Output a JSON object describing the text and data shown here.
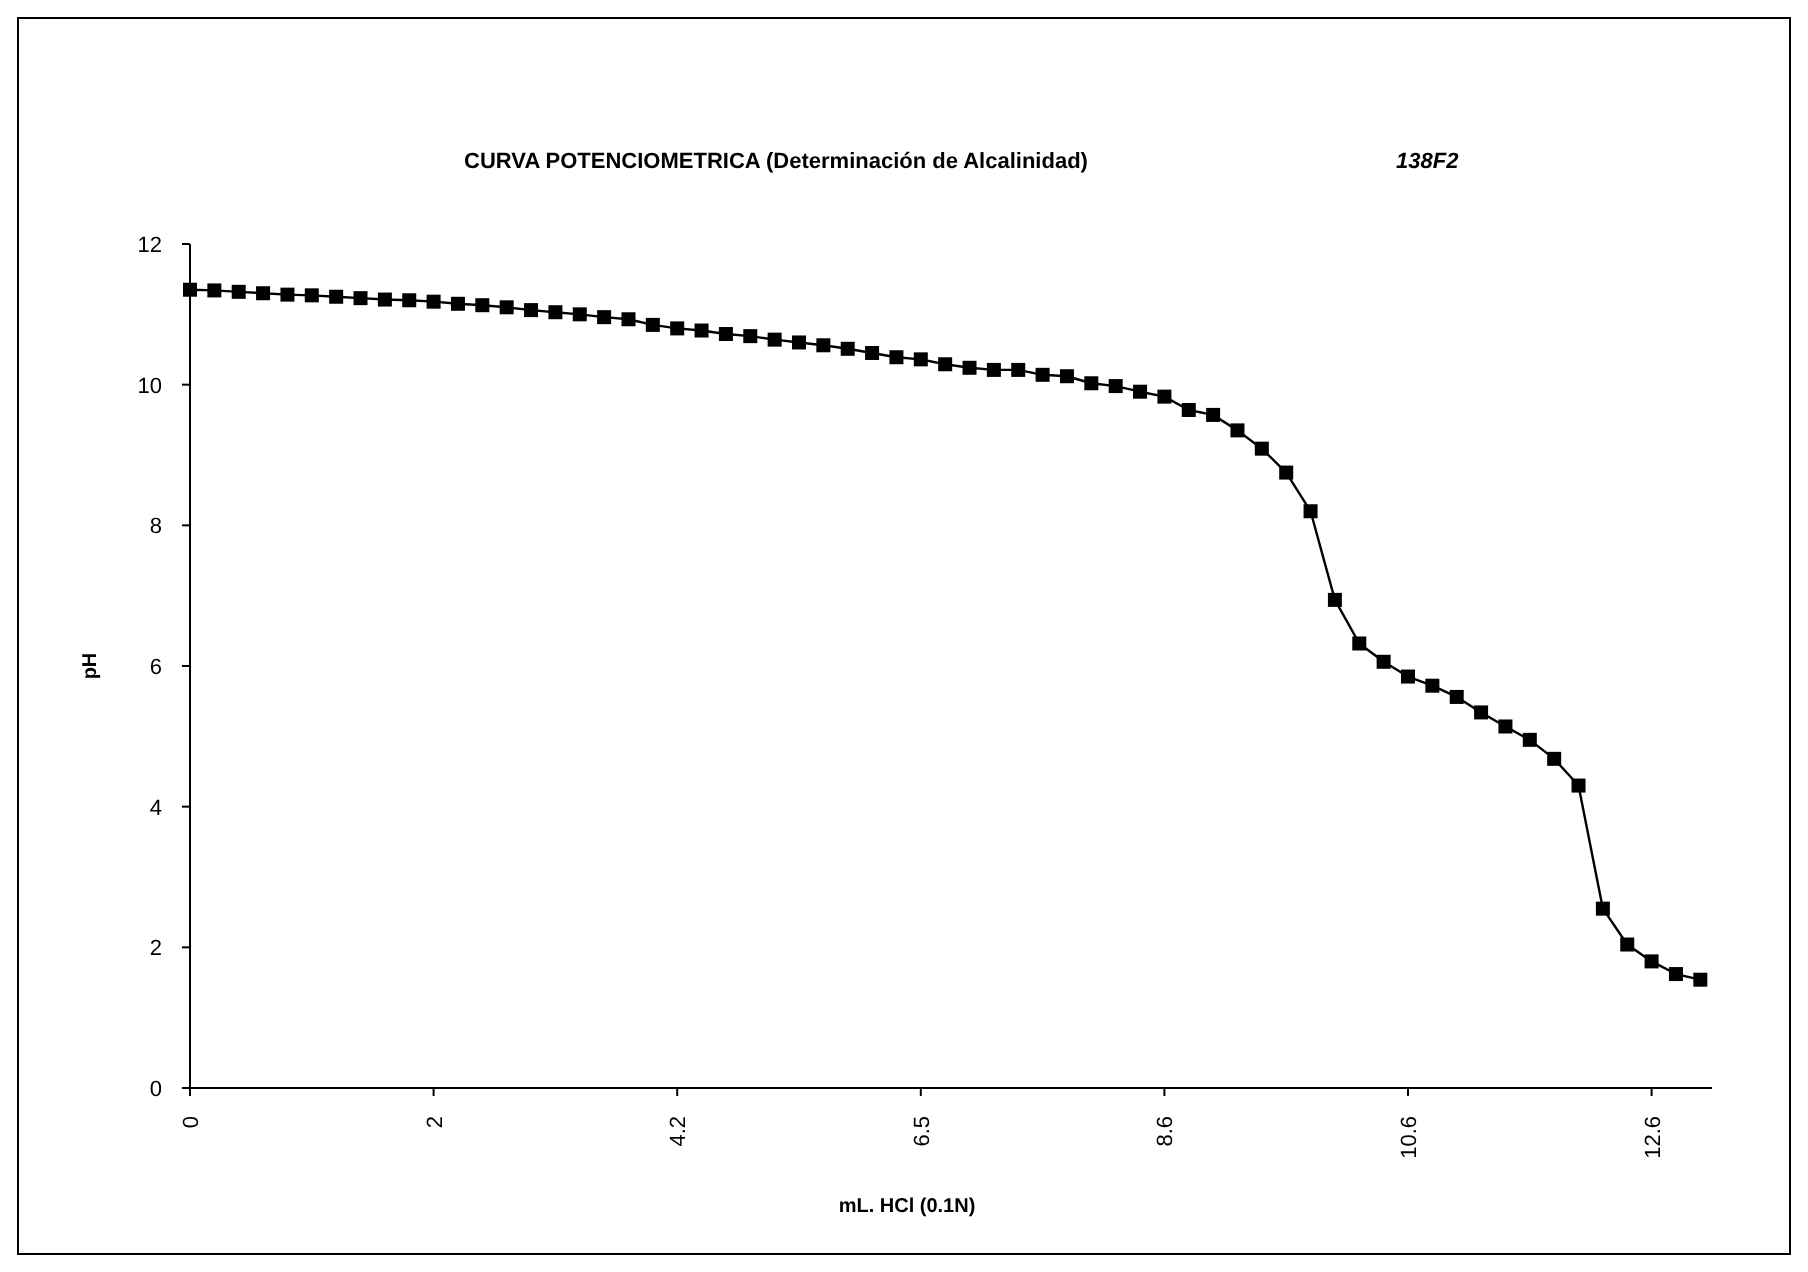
{
  "chart_data": {
    "type": "line",
    "title": "CURVA POTENCIOMETRICA (Determinación de Alcalinidad)",
    "annotations": [
      "138F2"
    ],
    "xlabel": "mL. HCl (0.1N)",
    "ylabel": "pH",
    "categories": [
      "0",
      null,
      null,
      null,
      null,
      null,
      null,
      null,
      null,
      null,
      "2",
      null,
      null,
      null,
      null,
      null,
      null,
      null,
      null,
      null,
      "4.2",
      null,
      null,
      null,
      null,
      null,
      null,
      null,
      null,
      null,
      "6.5",
      null,
      null,
      null,
      null,
      null,
      null,
      null,
      null,
      null,
      "8.6",
      null,
      null,
      null,
      null,
      null,
      null,
      null,
      null,
      null,
      "10.6",
      null,
      null,
      null,
      null,
      null,
      null,
      null,
      null,
      null,
      "12.6",
      null,
      null
    ],
    "series": [
      {
        "color": "#000000",
        "values": [
          11.35,
          11.34,
          11.32,
          11.3,
          11.28,
          11.27,
          11.25,
          11.23,
          11.21,
          11.2,
          11.18,
          11.15,
          11.13,
          11.1,
          11.06,
          11.03,
          11.0,
          10.96,
          10.93,
          10.85,
          10.8,
          10.77,
          10.72,
          10.69,
          10.64,
          10.6,
          10.56,
          10.51,
          10.45,
          10.39,
          10.36,
          10.29,
          10.24,
          10.21,
          10.21,
          10.14,
          10.12,
          10.02,
          9.98,
          9.9,
          9.83,
          9.64,
          9.57,
          9.35,
          9.09,
          8.75,
          8.2,
          6.94,
          6.32,
          6.06,
          5.85,
          5.72,
          5.56,
          5.34,
          5.14,
          4.95,
          4.68,
          4.3,
          2.55,
          2.04,
          1.8,
          1.62,
          1.54
        ]
      }
    ],
    "ylim": [
      0,
      12
    ],
    "yticks": [
      0,
      2,
      4,
      6,
      8,
      10,
      12
    ],
    "grid": false,
    "marker": "square",
    "line_style": "solid"
  }
}
